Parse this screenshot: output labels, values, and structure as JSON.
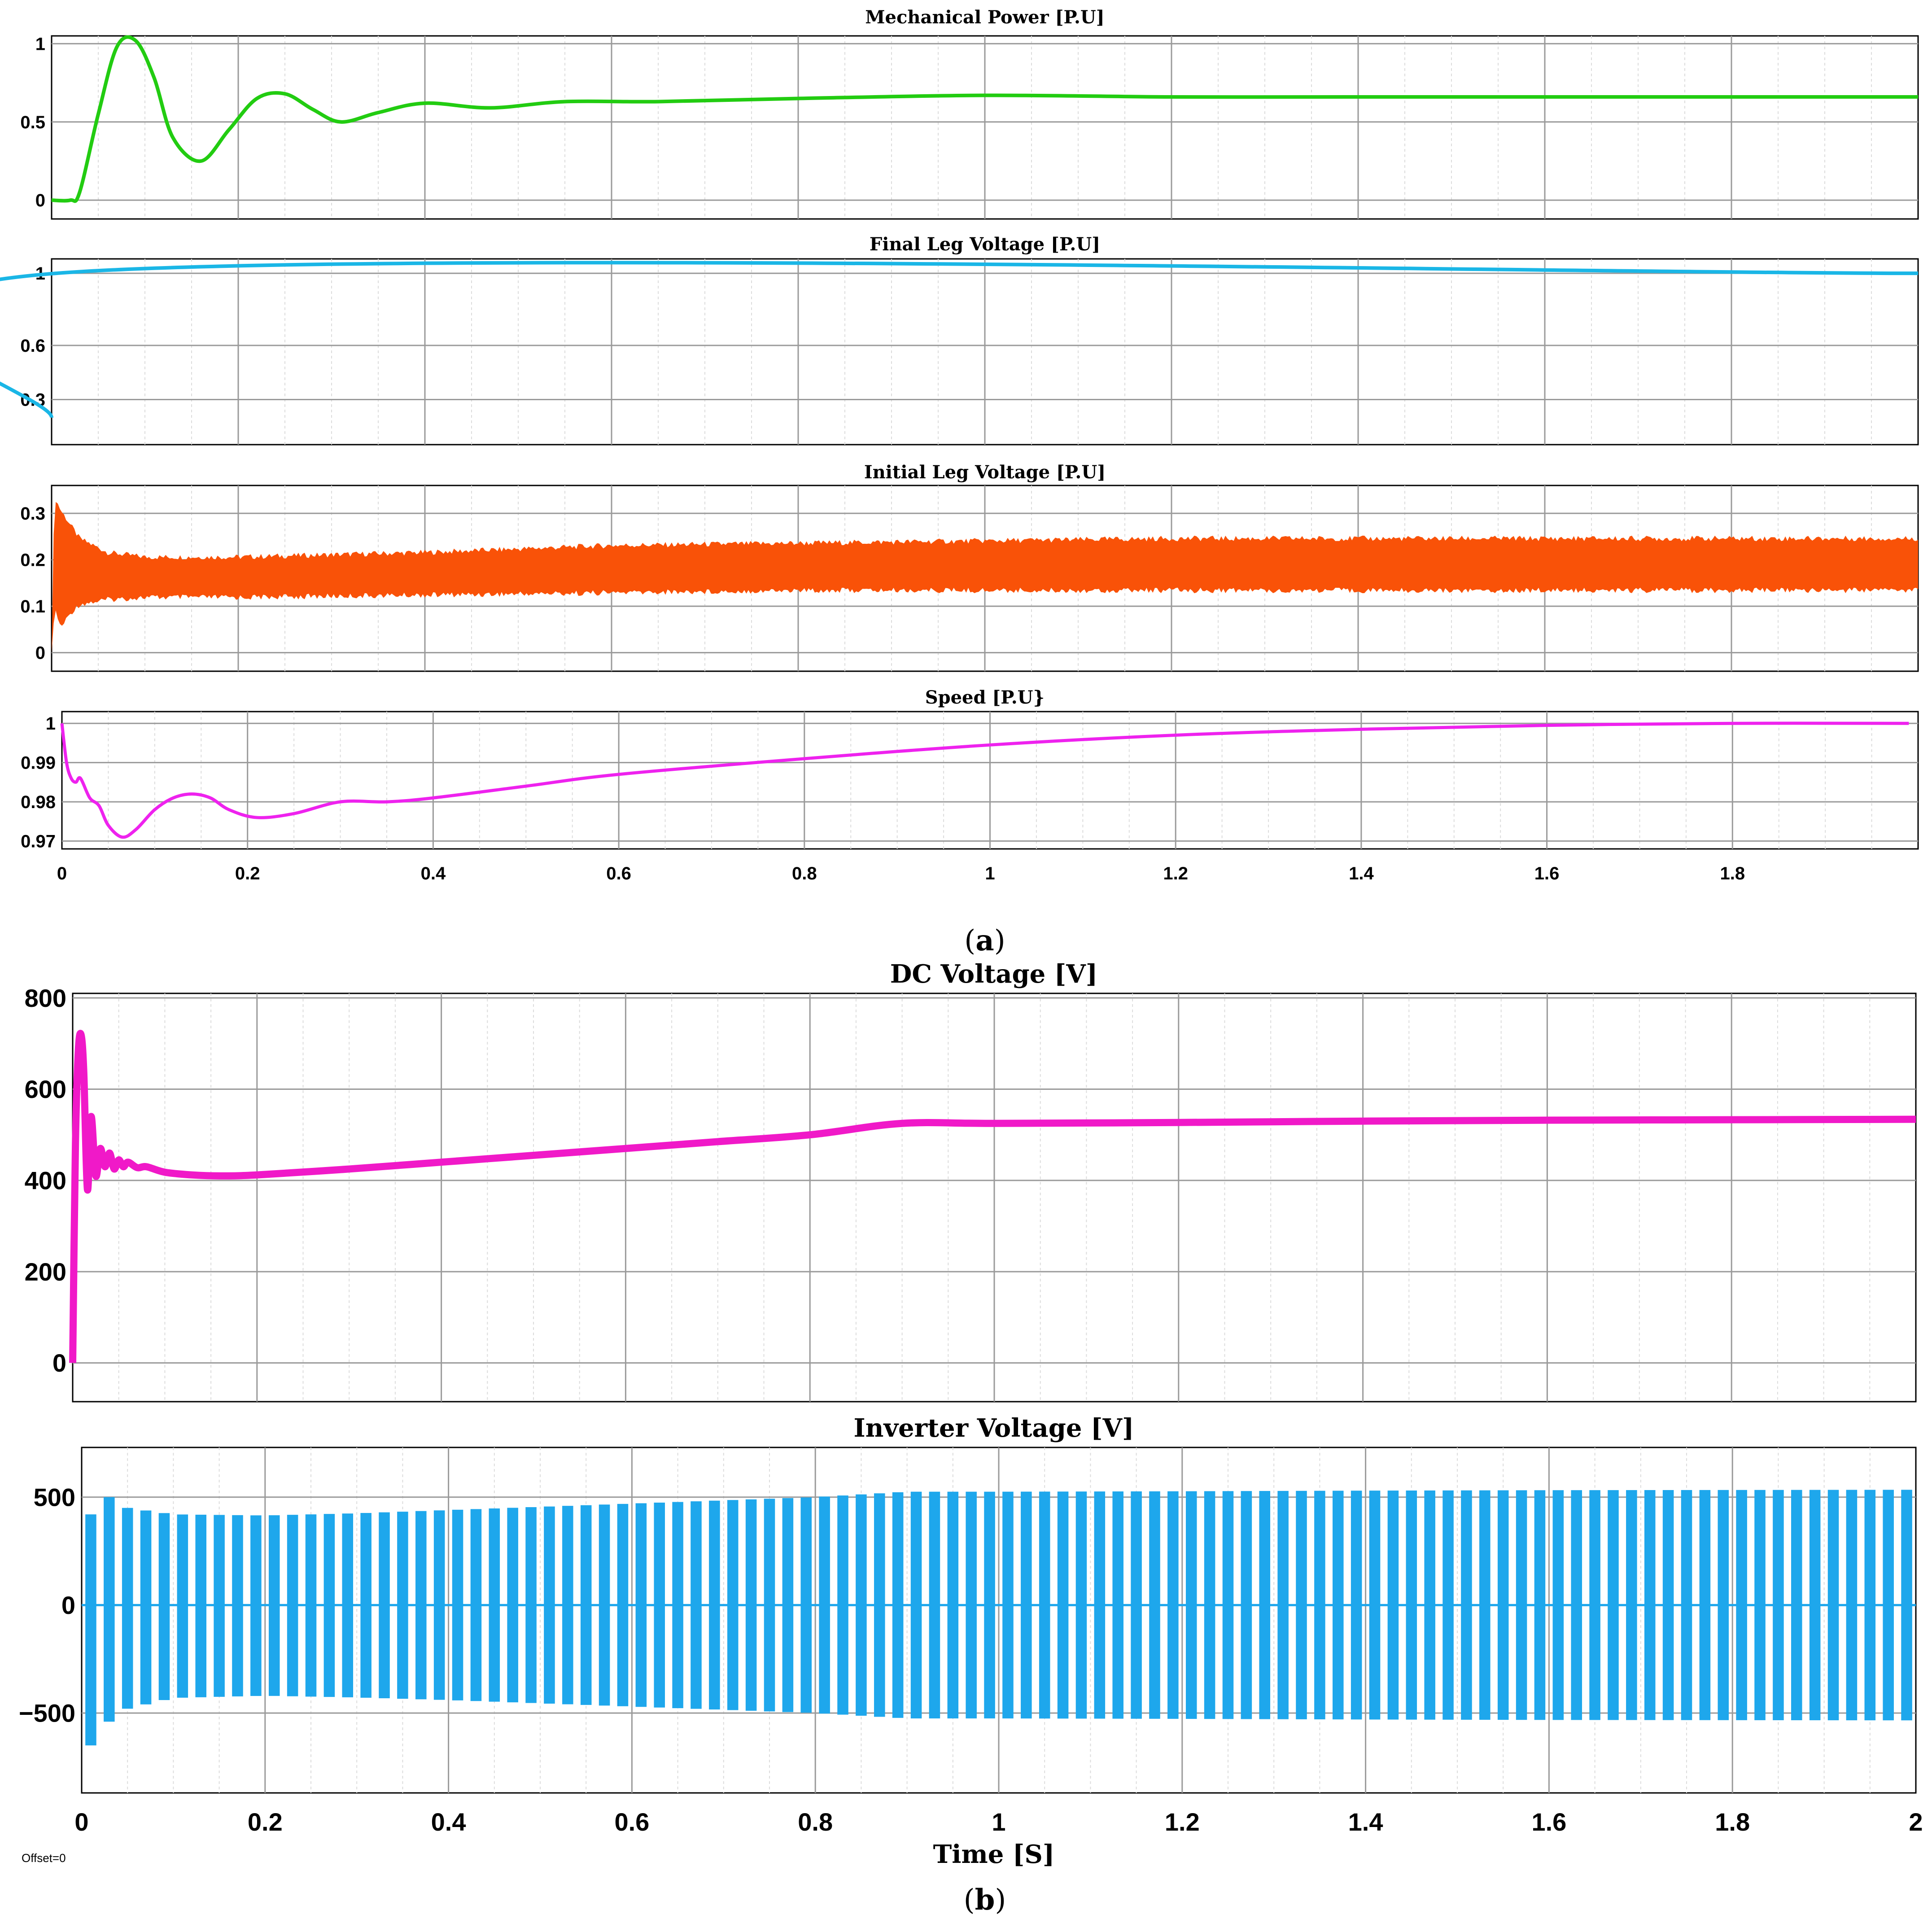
{
  "caption_a": [
    "(",
    "a",
    ")"
  ],
  "caption_b": [
    "(",
    "b",
    ")"
  ],
  "offset_label": "Offset=0",
  "colors": {
    "mechanical_power": "#22cc11",
    "final_leg_voltage": "#1ab6e6",
    "initial_leg_voltage": "#f95208",
    "speed": "#ee22ee",
    "dc_voltage": "#f019c8",
    "inverter_voltage": "#1ea7ec",
    "grid_major": "#9a9a9a",
    "grid_minor": "#dcdcdc"
  },
  "chart_data": [
    {
      "id": "mech",
      "type": "line",
      "title": "Mechanical Power [P.U]",
      "xlabel": "",
      "ylabel": "",
      "xlim": [
        0,
        2
      ],
      "ylim": [
        -0.12,
        1.05
      ],
      "yticks": [
        "0",
        "0.5",
        "1"
      ],
      "ytick_values": [
        0,
        0.5,
        1
      ],
      "grid": true,
      "series": [
        {
          "x": [
            0,
            0.02,
            0.03,
            0.05,
            0.07,
            0.09,
            0.11,
            0.13,
            0.16,
            0.19,
            0.22,
            0.25,
            0.28,
            0.31,
            0.35,
            0.4,
            0.47,
            0.55,
            0.65,
            0.8,
            1.0,
            1.2,
            1.4,
            1.6,
            1.8,
            2.0
          ],
          "y": [
            0.0,
            0.0,
            0.05,
            0.55,
            0.98,
            1.02,
            0.78,
            0.4,
            0.25,
            0.45,
            0.65,
            0.68,
            0.58,
            0.5,
            0.56,
            0.62,
            0.59,
            0.63,
            0.63,
            0.65,
            0.67,
            0.66,
            0.66,
            0.66,
            0.66,
            0.66
          ]
        }
      ]
    },
    {
      "id": "final",
      "type": "line",
      "title": "Final Leg Voltage [P.U]",
      "xlabel": "",
      "ylabel": "",
      "xlim": [
        0,
        2
      ],
      "ylim": [
        0.05,
        1.08
      ],
      "yticks": [
        "0.3",
        "0.6",
        "1"
      ],
      "ytick_values": [
        0.3,
        0.6,
        1
      ],
      "grid": true,
      "series": [
        {
          "x": [
            0,
            0.005,
            2.0
          ],
          "y": [
            0.2,
            1.0,
            1.0
          ]
        }
      ]
    },
    {
      "id": "initial",
      "type": "line",
      "title": "Initial Leg Voltage [P.U]",
      "xlabel": "",
      "ylabel": "",
      "xlim": [
        0,
        2
      ],
      "ylim": [
        -0.04,
        0.36
      ],
      "yticks": [
        "0",
        "0.1",
        "0.2",
        "0.3"
      ],
      "ytick_values": [
        0,
        0.1,
        0.2,
        0.3
      ],
      "grid": true,
      "band_x": [
        0,
        0.003,
        0.01,
        0.02,
        0.03,
        0.06,
        0.1,
        0.2,
        0.4,
        0.6,
        0.8,
        1.0,
        1.2,
        1.4,
        1.6,
        1.8,
        2.0
      ],
      "band_upper": [
        0.0,
        0.33,
        0.3,
        0.27,
        0.24,
        0.21,
        0.2,
        0.2,
        0.21,
        0.225,
        0.23,
        0.235,
        0.24,
        0.24,
        0.24,
        0.24,
        0.24
      ],
      "band_lower": [
        0.0,
        0.1,
        0.06,
        0.09,
        0.11,
        0.12,
        0.125,
        0.125,
        0.13,
        0.135,
        0.14,
        0.14,
        0.14,
        0.14,
        0.14,
        0.14,
        0.14
      ]
    },
    {
      "id": "speed",
      "type": "line",
      "title": "Speed [P.U}",
      "xlabel": "",
      "ylabel": "",
      "xlim": [
        0,
        2
      ],
      "ylim": [
        0.968,
        1.003
      ],
      "yticks": [
        "0.97",
        "0.98",
        "0.99",
        "1"
      ],
      "ytick_values": [
        0.97,
        0.98,
        0.99,
        1.0
      ],
      "xticks": [
        "0",
        "0.2",
        "0.4",
        "0.6",
        "0.8",
        "1",
        "1.2",
        "1.4",
        "1.6",
        "1.8"
      ],
      "xtick_values": [
        0,
        0.2,
        0.4,
        0.6,
        0.8,
        1.0,
        1.2,
        1.4,
        1.6,
        1.8
      ],
      "grid": true,
      "series": [
        {
          "x": [
            0,
            0.005,
            0.01,
            0.015,
            0.02,
            0.03,
            0.04,
            0.05,
            0.065,
            0.08,
            0.1,
            0.12,
            0.14,
            0.16,
            0.18,
            0.21,
            0.25,
            0.3,
            0.35,
            0.4,
            0.5,
            0.6,
            0.8,
            1.0,
            1.2,
            1.4,
            1.6,
            1.8,
            1.99
          ],
          "y": [
            1.0,
            0.99,
            0.986,
            0.985,
            0.986,
            0.981,
            0.979,
            0.974,
            0.971,
            0.973,
            0.978,
            0.981,
            0.982,
            0.981,
            0.978,
            0.976,
            0.977,
            0.98,
            0.98,
            0.981,
            0.984,
            0.987,
            0.991,
            0.9945,
            0.997,
            0.9985,
            0.9995,
            1.0,
            1.0
          ]
        }
      ]
    },
    {
      "id": "dc",
      "type": "line",
      "title": "DC Voltage [V]",
      "xlabel": "",
      "ylabel": "",
      "xlim": [
        0,
        2
      ],
      "ylim": [
        -85,
        810
      ],
      "yticks": [
        "0",
        "200",
        "400",
        "600",
        "800"
      ],
      "ytick_values": [
        0,
        200,
        400,
        600,
        800
      ],
      "grid": true,
      "series": [
        {
          "x": [
            0,
            0.003,
            0.006,
            0.009,
            0.012,
            0.016,
            0.02,
            0.025,
            0.03,
            0.035,
            0.04,
            0.045,
            0.05,
            0.055,
            0.06,
            0.07,
            0.08,
            0.1,
            0.13,
            0.16,
            0.2,
            0.3,
            0.4,
            0.5,
            0.6,
            0.7,
            0.8,
            0.9,
            1.0,
            1.2,
            1.4,
            1.6,
            1.8,
            2.0
          ],
          "y": [
            0,
            480,
            680,
            720,
            640,
            380,
            540,
            410,
            470,
            430,
            460,
            425,
            445,
            430,
            440,
            428,
            430,
            418,
            412,
            410,
            412,
            425,
            440,
            455,
            470,
            485,
            500,
            525,
            525,
            527,
            530,
            532,
            533,
            534
          ]
        }
      ]
    },
    {
      "id": "inv",
      "type": "line",
      "title": "Inverter Voltage [V]",
      "xlabel": "Time [S]",
      "ylabel": "",
      "xlim": [
        0,
        2
      ],
      "ylim": [
        -870,
        730
      ],
      "yticks": [
        "−500",
        "0",
        "500"
      ],
      "ytick_values": [
        -500,
        0,
        500
      ],
      "xticks": [
        "0",
        "0.2",
        "0.4",
        "0.6",
        "0.8",
        "1",
        "1.2",
        "1.4",
        "1.6",
        "1.8",
        "2"
      ],
      "xtick_values": [
        0,
        0.2,
        0.4,
        0.6,
        0.8,
        1.0,
        1.2,
        1.4,
        1.6,
        1.8,
        2.0
      ],
      "grid": true,
      "envelope_x": [
        0,
        0.005,
        0.01,
        0.02,
        0.03,
        0.05,
        0.1,
        0.2,
        0.3,
        0.4,
        0.5,
        0.6,
        0.7,
        0.8,
        0.9,
        1.0,
        1.2,
        1.4,
        1.6,
        1.8,
        2.0
      ],
      "envelope_pos": [
        300,
        600,
        420,
        480,
        500,
        450,
        420,
        415,
        425,
        440,
        455,
        470,
        485,
        500,
        525,
        525,
        527,
        530,
        532,
        533,
        534
      ],
      "envelope_neg": [
        -400,
        -720,
        -650,
        -600,
        -540,
        -480,
        -430,
        -420,
        -428,
        -440,
        -455,
        -470,
        -485,
        -500,
        -525,
        -525,
        -527,
        -530,
        -532,
        -533,
        -534
      ]
    }
  ]
}
